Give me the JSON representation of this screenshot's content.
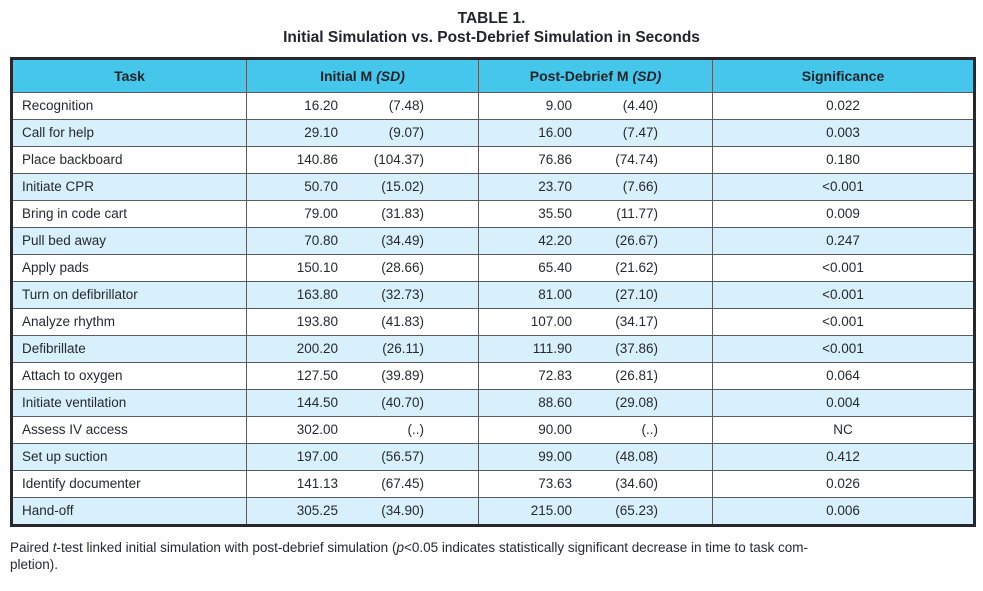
{
  "title": {
    "line1": "TABLE 1.",
    "line2": "Initial Simulation vs. Post-Debrief Simulation in Seconds"
  },
  "table": {
    "colors": {
      "header_bg": "#45c6eb",
      "stripe_bg": "#d7f0fb",
      "row_bg": "#ffffff",
      "border": "#595d63",
      "outer_border": "#26282d",
      "text": "#26292e"
    },
    "columns": [
      {
        "label": "Task",
        "italic": ""
      },
      {
        "label": "Initial M",
        "italic": "(SD)"
      },
      {
        "label": "Post-Debrief M",
        "italic": "(SD)"
      },
      {
        "label": "Significance",
        "italic": ""
      }
    ],
    "rows": [
      {
        "task": "Recognition",
        "initial_m": "16.20",
        "initial_sd": "(7.48)",
        "post_m": "9.00",
        "post_sd": "(4.40)",
        "significance": "0.022"
      },
      {
        "task": "Call for help",
        "initial_m": "29.10",
        "initial_sd": "(9.07)",
        "post_m": "16.00",
        "post_sd": "(7.47)",
        "significance": "0.003"
      },
      {
        "task": "Place backboard",
        "initial_m": "140.86",
        "initial_sd": "(104.37)",
        "post_m": "76.86",
        "post_sd": "(74.74)",
        "significance": "0.180"
      },
      {
        "task": "Initiate CPR",
        "initial_m": "50.70",
        "initial_sd": "(15.02)",
        "post_m": "23.70",
        "post_sd": "(7.66)",
        "significance": "<0.001"
      },
      {
        "task": "Bring in code cart",
        "initial_m": "79.00",
        "initial_sd": "(31.83)",
        "post_m": "35.50",
        "post_sd": "(11.77)",
        "significance": "0.009"
      },
      {
        "task": "Pull bed away",
        "initial_m": "70.80",
        "initial_sd": "(34.49)",
        "post_m": "42.20",
        "post_sd": "(26.67)",
        "significance": "0.247"
      },
      {
        "task": "Apply pads",
        "initial_m": "150.10",
        "initial_sd": "(28.66)",
        "post_m": "65.40",
        "post_sd": "(21.62)",
        "significance": "<0.001"
      },
      {
        "task": "Turn on defibrillator",
        "initial_m": "163.80",
        "initial_sd": "(32.73)",
        "post_m": "81.00",
        "post_sd": "(27.10)",
        "significance": "<0.001"
      },
      {
        "task": "Analyze rhythm",
        "initial_m": "193.80",
        "initial_sd": "(41.83)",
        "post_m": "107.00",
        "post_sd": "(34.17)",
        "significance": "<0.001"
      },
      {
        "task": "Defibrillate",
        "initial_m": "200.20",
        "initial_sd": "(26.11)",
        "post_m": "111.90",
        "post_sd": "(37.86)",
        "significance": "<0.001"
      },
      {
        "task": "Attach to oxygen",
        "initial_m": "127.50",
        "initial_sd": "(39.89)",
        "post_m": "72.83",
        "post_sd": "(26.81)",
        "significance": "0.064"
      },
      {
        "task": "Initiate ventilation",
        "initial_m": "144.50",
        "initial_sd": "(40.70)",
        "post_m": "88.60",
        "post_sd": "(29.08)",
        "significance": "0.004"
      },
      {
        "task": "Assess IV access",
        "initial_m": "302.00",
        "initial_sd": "(..)",
        "post_m": "90.00",
        "post_sd": "(..)",
        "significance": "NC"
      },
      {
        "task": "Set up suction",
        "initial_m": "197.00",
        "initial_sd": "(56.57)",
        "post_m": "99.00",
        "post_sd": "(48.08)",
        "significance": "0.412"
      },
      {
        "task": "Identify documenter",
        "initial_m": "141.13",
        "initial_sd": "(67.45)",
        "post_m": "73.63",
        "post_sd": "(34.60)",
        "significance": "0.026"
      },
      {
        "task": "Hand-off",
        "initial_m": "305.25",
        "initial_sd": "(34.90)",
        "post_m": "215.00",
        "post_sd": "(65.23)",
        "significance": "0.006"
      }
    ]
  },
  "footnote": {
    "part1": "Paired ",
    "italic1": "t",
    "part2": "-test linked initial simulation with post-debrief simulation (",
    "italic2": "p",
    "part3": "<0.05 indicates statistically significant decrease in time to task com-",
    "part4": "pletion)."
  }
}
